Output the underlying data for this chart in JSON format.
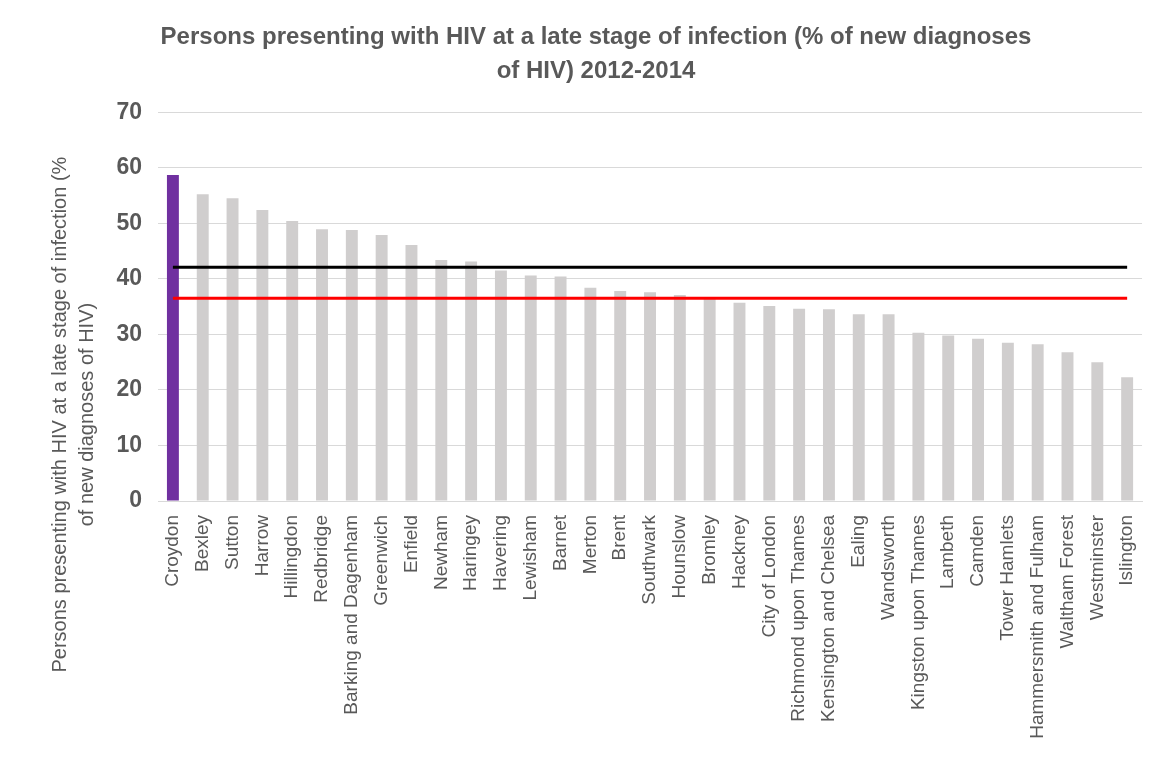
{
  "chart_data": {
    "type": "bar",
    "title": "Persons presenting with HIV at a late stage of infection (% of new diagnoses of HIV) 2012-2014",
    "ylabel": "Persons presenting with HIV at a late stage of infection (% of new diagnoses of HIV)",
    "categories": [
      "Croydon",
      "Bexley",
      "Sutton",
      "Harrow",
      "Hillingdon",
      "Redbridge",
      "Barking and Dagenham",
      "Greenwich",
      "Enfield",
      "Newham",
      "Haringey",
      "Havering",
      "Lewisham",
      "Barnet",
      "Merton",
      "Brent",
      "Southwark",
      "Hounslow",
      "Bromley",
      "Hackney",
      "City of London",
      "Richmond upon Thames",
      "Kensington and Chelsea",
      "Ealing",
      "Wandsworth",
      "Kingston upon Thames",
      "Lambeth",
      "Camden",
      "Tower Hamlets",
      "Hammersmith and Fulham",
      "Waltham Forest",
      "Westminster",
      "Islington"
    ],
    "values": [
      58.7,
      55.2,
      54.5,
      52.4,
      50.4,
      48.9,
      48.8,
      47.9,
      46.1,
      43.4,
      43.1,
      41.5,
      40.6,
      40.4,
      38.4,
      37.8,
      37.6,
      37.1,
      36.4,
      35.7,
      35.1,
      34.6,
      34.5,
      33.6,
      33.6,
      30.3,
      29.8,
      29.2,
      28.5,
      28.2,
      26.8,
      25.0,
      22.3
    ],
    "colors": [
      "#7030a0",
      "#d0cece",
      "#d0cece",
      "#d0cece",
      "#d0cece",
      "#d0cece",
      "#d0cece",
      "#d0cece",
      "#d0cece",
      "#d0cece",
      "#d0cece",
      "#d0cece",
      "#d0cece",
      "#d0cece",
      "#d0cece",
      "#d0cece",
      "#d0cece",
      "#d0cece",
      "#d0cece",
      "#d0cece",
      "#d0cece",
      "#d0cece",
      "#d0cece",
      "#d0cece",
      "#d0cece",
      "#d0cece",
      "#d0cece",
      "#d0cece",
      "#d0cece",
      "#d0cece",
      "#d0cece",
      "#d0cece",
      "#d0cece"
    ],
    "ylim": [
      0,
      70
    ],
    "yticks": [
      0,
      10,
      20,
      30,
      40,
      50,
      60,
      70
    ],
    "grid": "y",
    "ref_lines": [
      {
        "axis": "y",
        "value": 42.1,
        "color": "#000000"
      },
      {
        "axis": "y",
        "value": 36.5,
        "color": "#ff0000"
      }
    ]
  }
}
